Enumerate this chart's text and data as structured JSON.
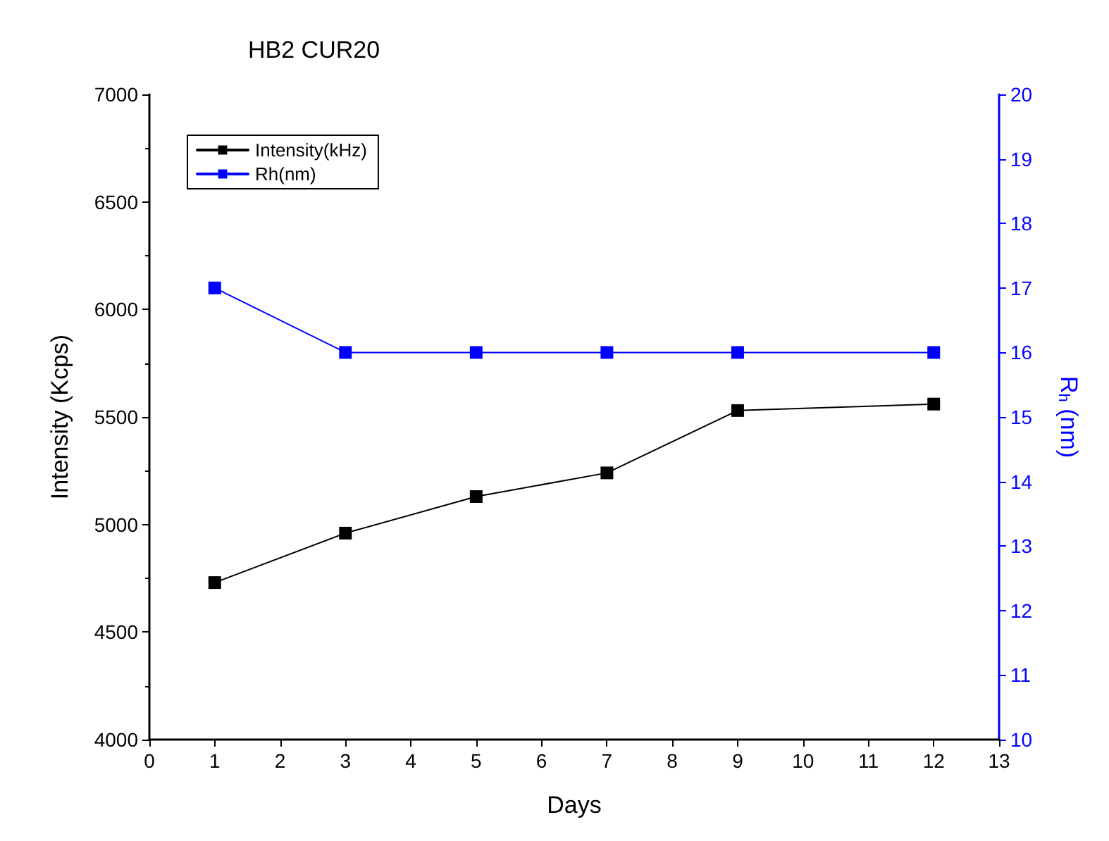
{
  "chart_data": {
    "type": "line",
    "title": "HB2 CUR20",
    "xlabel": "Days",
    "ylabel": "Intensity (Kcps)",
    "y2label": "R$_{h}$ (nm)",
    "x": [
      1,
      3,
      5,
      7,
      9,
      12
    ],
    "series": [
      {
        "name": "Intensity(kHz)",
        "color": "#000000",
        "values": [
          4730,
          4960,
          5130,
          5240,
          5530,
          5560
        ]
      },
      {
        "name": "Rh(nm)",
        "color": "#0000ff",
        "axis": "y2",
        "values": [
          17,
          16,
          16,
          16,
          16,
          16
        ]
      }
    ],
    "xlim": [
      0,
      13
    ],
    "xticks": [
      0,
      1,
      2,
      3,
      4,
      5,
      6,
      7,
      8,
      9,
      10,
      11,
      12,
      13
    ],
    "ylim": [
      4000,
      7000
    ],
    "yticks": [
      4000,
      4500,
      5000,
      5500,
      6000,
      6500,
      7000
    ],
    "y2lim": [
      10,
      20
    ],
    "y2ticks": [
      10,
      11,
      12,
      13,
      14,
      15,
      16,
      17,
      18,
      19,
      20
    ],
    "legend": "top left",
    "marker": "square",
    "line_style": "solid",
    "grid": false
  }
}
